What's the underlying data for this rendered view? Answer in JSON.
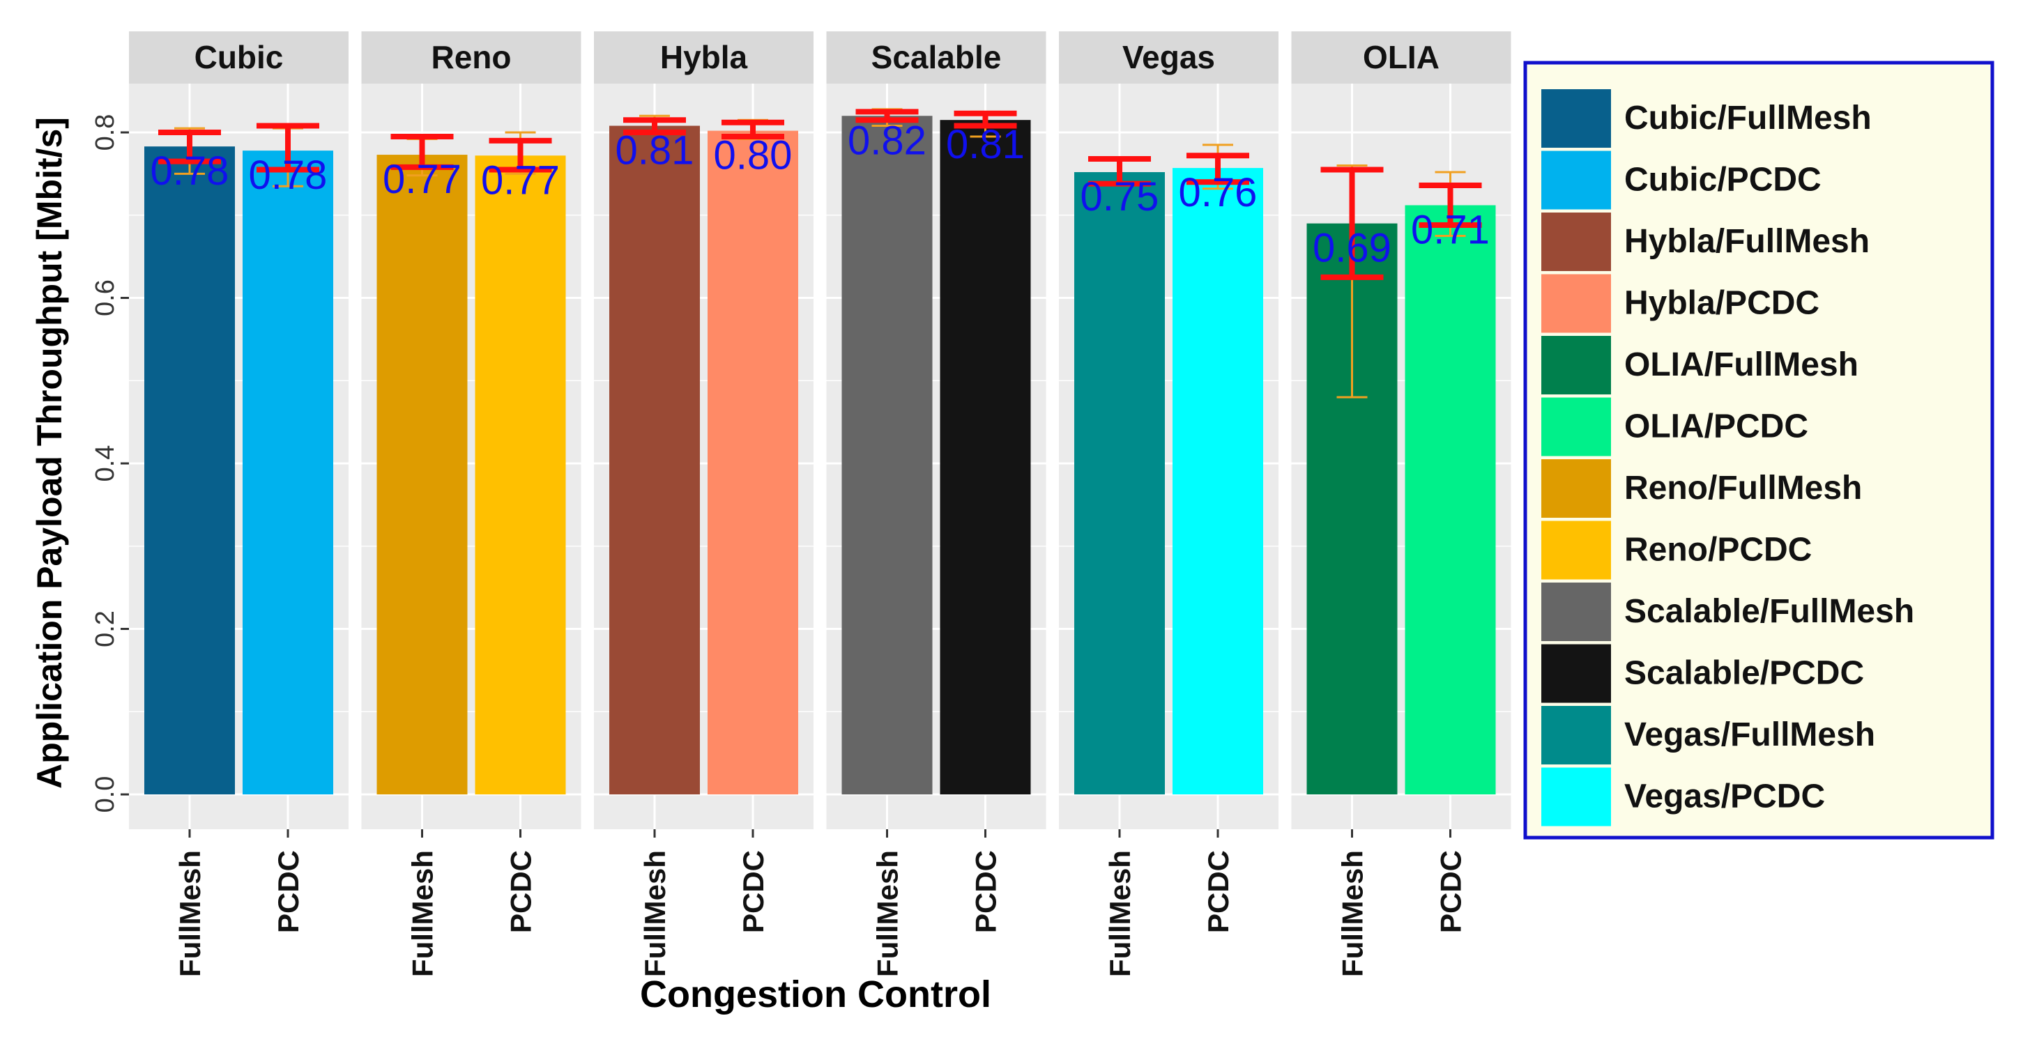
{
  "chart_data": {
    "type": "bar",
    "facet_by": "Congestion Control",
    "facets": [
      "Cubic",
      "Reno",
      "Hybla",
      "Scalable",
      "Vegas",
      "OLIA"
    ],
    "categories": [
      "FullMesh",
      "PCDC"
    ],
    "xlabel": "Congestion Control",
    "ylabel": "Application Payload Throughput [Mbit/s]",
    "ylim": [
      0,
      0.86
    ],
    "yticks": [
      0.0,
      0.2,
      0.4,
      0.6,
      0.8
    ],
    "ytick_labels": [
      "0.0",
      "0.2",
      "0.4",
      "0.6",
      "0.8"
    ],
    "grid": true,
    "legend_position": "right",
    "series": [
      {
        "facet": "Cubic",
        "category": "FullMesh",
        "name": "Cubic/FullMesh",
        "value": 0.783,
        "label": "0.78",
        "color": "#08608c",
        "err_red": [
          0.765,
          0.8
        ],
        "err_orange": [
          0.75,
          0.805
        ]
      },
      {
        "facet": "Cubic",
        "category": "PCDC",
        "name": "Cubic/PCDC",
        "value": 0.778,
        "label": "0.78",
        "color": "#00b2ee",
        "err_red": [
          0.755,
          0.808
        ],
        "err_orange": [
          0.735,
          0.805
        ]
      },
      {
        "facet": "Reno",
        "category": "FullMesh",
        "name": "Reno/FullMesh",
        "value": 0.773,
        "label": "0.77",
        "color": "#de9c00",
        "err_red": [
          0.758,
          0.795
        ],
        "err_orange": [
          0.748,
          0.792
        ]
      },
      {
        "facet": "Reno",
        "category": "PCDC",
        "name": "Reno/PCDC",
        "value": 0.772,
        "label": "0.77",
        "color": "#ffc000",
        "err_red": [
          0.755,
          0.79
        ],
        "err_orange": [
          0.75,
          0.8
        ]
      },
      {
        "facet": "Hybla",
        "category": "FullMesh",
        "name": "Hybla/FullMesh",
        "value": 0.808,
        "label": "0.81",
        "color": "#9a4a35",
        "err_red": [
          0.8,
          0.815
        ],
        "err_orange": [
          0.798,
          0.82
        ]
      },
      {
        "facet": "Hybla",
        "category": "PCDC",
        "name": "Hybla/PCDC",
        "value": 0.802,
        "label": "0.80",
        "color": "#ff8a66",
        "err_red": [
          0.795,
          0.812
        ],
        "err_orange": [
          0.792,
          0.815
        ]
      },
      {
        "facet": "Scalable",
        "category": "FullMesh",
        "name": "Scalable/FullMesh",
        "value": 0.82,
        "label": "0.82",
        "color": "#666666",
        "err_red": [
          0.815,
          0.825
        ],
        "err_orange": [
          0.808,
          0.828
        ]
      },
      {
        "facet": "Scalable",
        "category": "PCDC",
        "name": "Scalable/PCDC",
        "value": 0.815,
        "label": "0.81",
        "color": "#141414",
        "err_red": [
          0.808,
          0.823
        ],
        "err_orange": [
          0.795,
          0.825
        ]
      },
      {
        "facet": "Vegas",
        "category": "FullMesh",
        "name": "Vegas/FullMesh",
        "value": 0.752,
        "label": "0.75",
        "color": "#008b8b",
        "err_red": [
          0.738,
          0.768
        ],
        "err_orange": [
          0.738,
          0.768
        ]
      },
      {
        "facet": "Vegas",
        "category": "PCDC",
        "name": "Vegas/PCDC",
        "value": 0.757,
        "label": "0.76",
        "color": "#00ffff",
        "err_red": [
          0.74,
          0.772
        ],
        "err_orange": [
          0.732,
          0.785
        ]
      },
      {
        "facet": "OLIA",
        "category": "FullMesh",
        "name": "OLIA/FullMesh",
        "value": 0.69,
        "label": "0.69",
        "color": "#00804d",
        "err_red": [
          0.625,
          0.755
        ],
        "err_orange": [
          0.48,
          0.76
        ]
      },
      {
        "facet": "OLIA",
        "category": "PCDC",
        "name": "OLIA/PCDC",
        "value": 0.712,
        "label": "0.71",
        "color": "#00f08a",
        "err_red": [
          0.688,
          0.736
        ],
        "err_orange": [
          0.675,
          0.752
        ]
      }
    ],
    "legend": [
      {
        "label": "Cubic/FullMesh",
        "color": "#08608c"
      },
      {
        "label": "Cubic/PCDC",
        "color": "#00b2ee"
      },
      {
        "label": "Hybla/FullMesh",
        "color": "#9a4a35"
      },
      {
        "label": "Hybla/PCDC",
        "color": "#ff8a66"
      },
      {
        "label": "OLIA/FullMesh",
        "color": "#00804d"
      },
      {
        "label": "OLIA/PCDC",
        "color": "#00f08a"
      },
      {
        "label": "Reno/FullMesh",
        "color": "#de9c00"
      },
      {
        "label": "Reno/PCDC",
        "color": "#ffc000"
      },
      {
        "label": "Scalable/FullMesh",
        "color": "#666666"
      },
      {
        "label": "Scalable/PCDC",
        "color": "#141414"
      },
      {
        "label": "Vegas/FullMesh",
        "color": "#008b8b"
      },
      {
        "label": "Vegas/PCDC",
        "color": "#00ffff"
      }
    ]
  },
  "colors": {
    "panel_bg": "#ebebeb",
    "strip_bg": "#d9d9d9",
    "grid": "#ffffff",
    "value_label": "#1010ee",
    "err_red": "#ff1010",
    "err_orange": "#f0a020",
    "legend_bg": "#fdfde8",
    "legend_border": "#1010cc"
  }
}
